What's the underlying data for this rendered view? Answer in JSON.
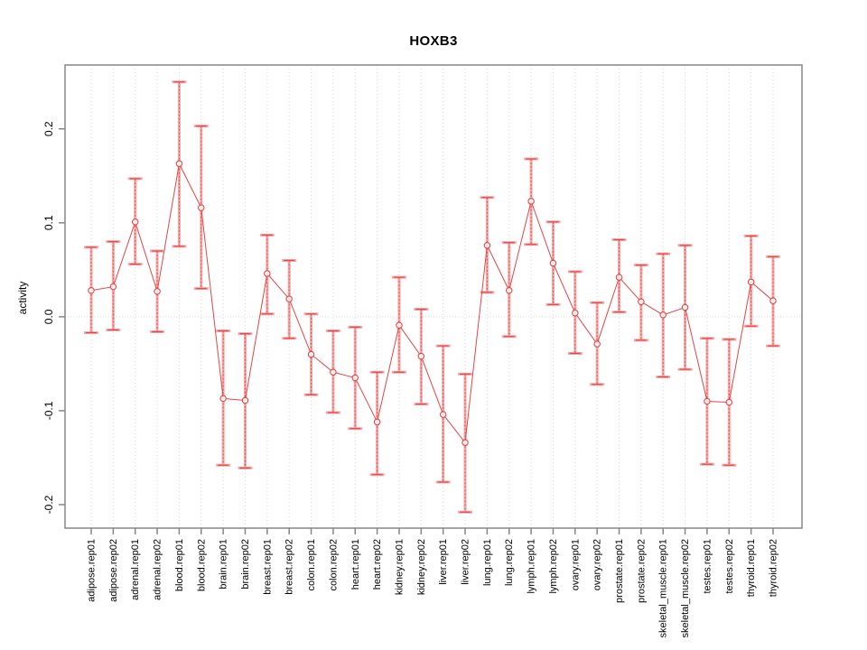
{
  "chart_data": {
    "type": "line",
    "title": "HOXB3",
    "ylabel": "activity",
    "xlabel": "",
    "legend": "none",
    "grid": "vertical-dotted",
    "zero_line": true,
    "ylim": [
      -0.225,
      0.268
    ],
    "ytick_values": [
      0.2,
      0.1,
      0.0,
      -0.1,
      -0.2
    ],
    "ytick_labels": [
      "0.2",
      "0.1",
      "0.0",
      "-0.1",
      "-0.2"
    ],
    "categories": [
      "adipose.rep01",
      "adipose.rep02",
      "adrenal.rep01",
      "adrenal.rep02",
      "blood.rep01",
      "blood.rep02",
      "brain.rep01",
      "brain.rep02",
      "breast.rep01",
      "breast.rep02",
      "colon.rep01",
      "colon.rep02",
      "heart.rep01",
      "heart.rep02",
      "kidney.rep01",
      "kidney.rep02",
      "liver.rep01",
      "liver.rep02",
      "lung.rep01",
      "lung.rep02",
      "lymph.rep01",
      "lymph.rep02",
      "ovary.rep01",
      "ovary.rep02",
      "prostate.rep01",
      "prostate.rep02",
      "skeletal_muscle.rep01",
      "skeletal_muscle.rep02",
      "testes.rep01",
      "testes.rep02",
      "thyroid.rep01",
      "thyroid.rep02"
    ],
    "series": [
      {
        "name": "activity",
        "marker": "open-circle",
        "center": [
          0.028,
          0.032,
          0.101,
          0.027,
          0.163,
          0.116,
          -0.087,
          -0.089,
          0.046,
          0.019,
          -0.04,
          -0.059,
          -0.065,
          -0.112,
          -0.009,
          -0.042,
          -0.104,
          -0.134,
          0.076,
          0.028,
          0.123,
          0.057,
          0.004,
          -0.029,
          0.042,
          0.016,
          0.002,
          0.01,
          -0.09,
          -0.091,
          0.037,
          0.017
        ],
        "upper": [
          0.074,
          0.08,
          0.147,
          0.07,
          0.25,
          0.203,
          -0.015,
          -0.018,
          0.087,
          0.06,
          0.003,
          -0.015,
          -0.011,
          -0.059,
          0.042,
          0.008,
          -0.031,
          -0.061,
          0.127,
          0.079,
          0.168,
          0.101,
          0.048,
          0.015,
          0.082,
          0.055,
          0.067,
          0.076,
          -0.023,
          -0.024,
          0.086,
          0.064
        ],
        "lower": [
          -0.017,
          -0.014,
          0.056,
          -0.016,
          0.075,
          0.03,
          -0.158,
          -0.161,
          0.003,
          -0.023,
          -0.083,
          -0.102,
          -0.119,
          -0.168,
          -0.059,
          -0.093,
          -0.176,
          -0.208,
          0.026,
          -0.021,
          0.077,
          0.013,
          -0.039,
          -0.072,
          0.005,
          -0.025,
          -0.064,
          -0.056,
          -0.157,
          -0.158,
          -0.01,
          -0.031
        ]
      }
    ],
    "colors": {
      "point": "#e64545",
      "line": "#e64545",
      "error_bar": "#e64545",
      "error_bar_light": "#f6a8a8",
      "grid": "#d8d8d8",
      "zero_line": "#dcdcdc",
      "frame": "#878787",
      "text": "#000000"
    }
  }
}
